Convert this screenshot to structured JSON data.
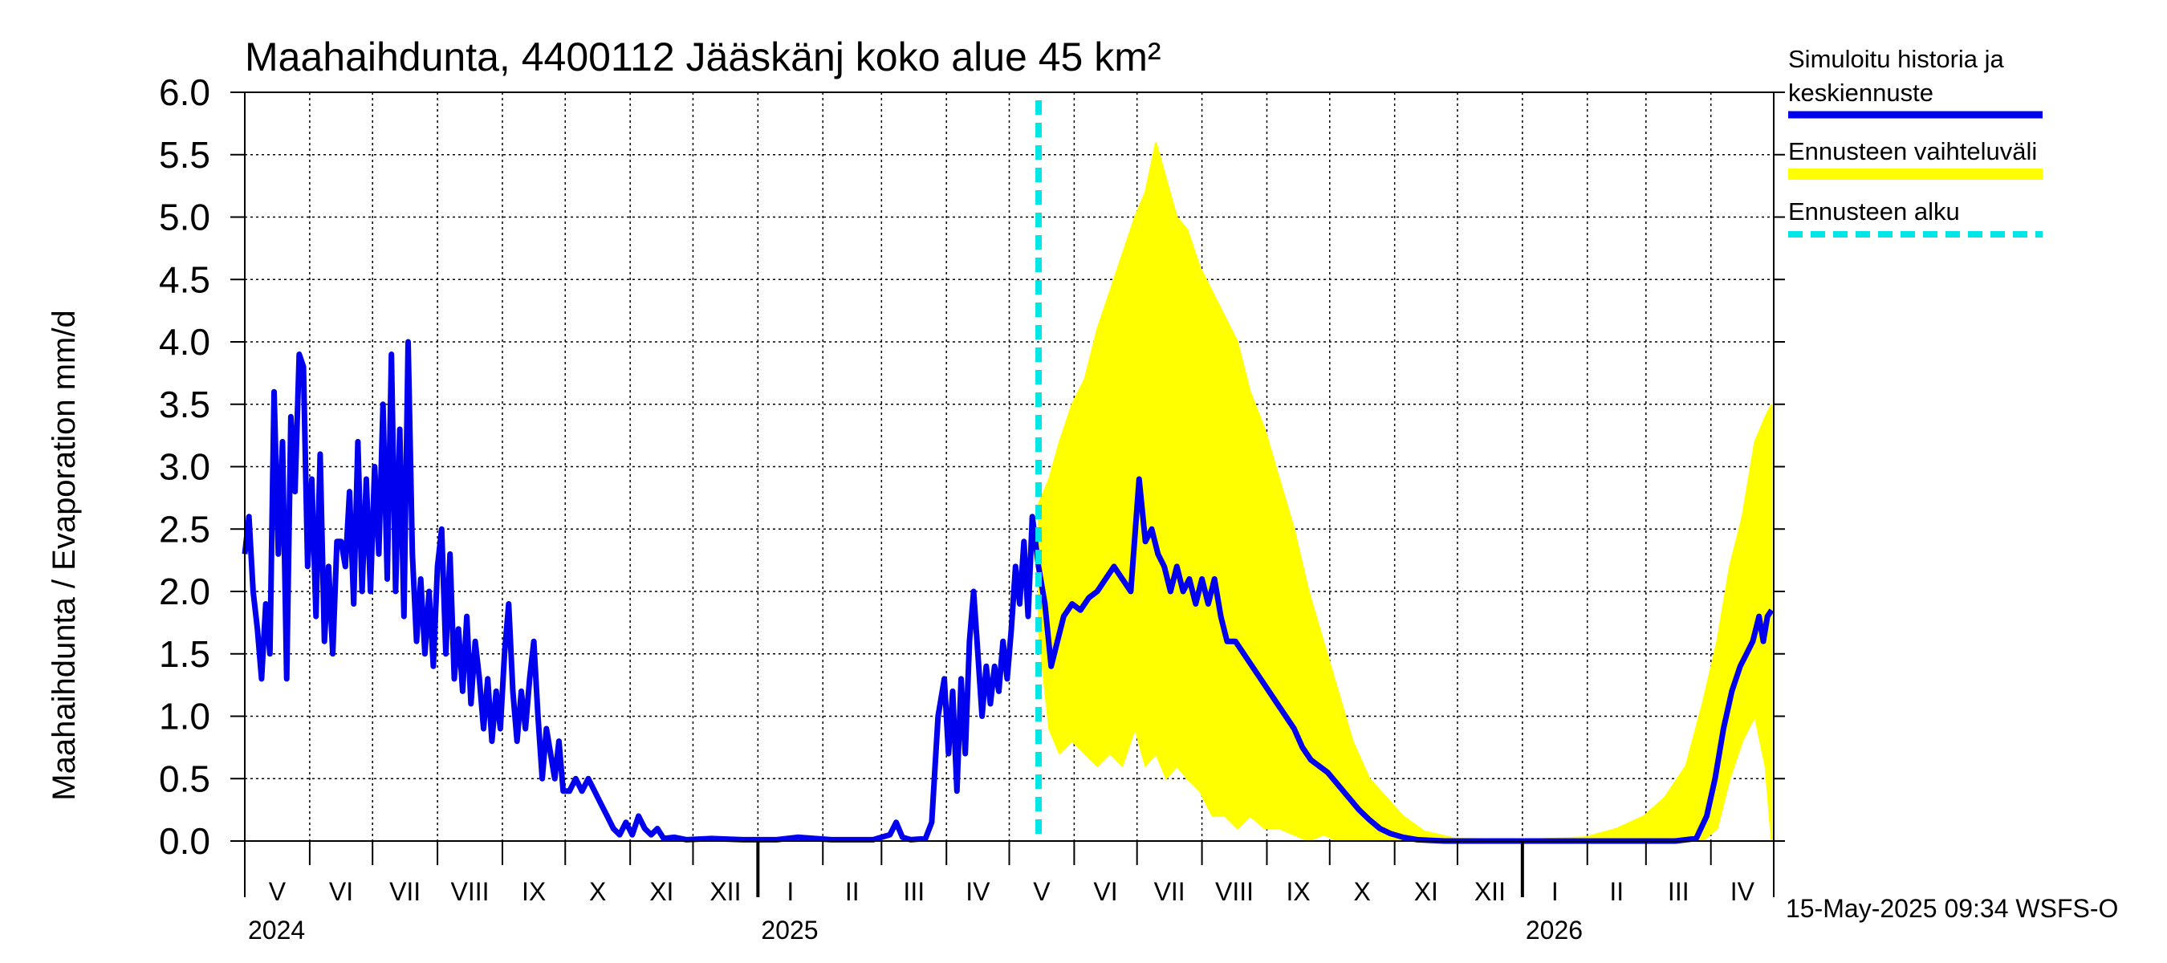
{
  "chart_data": {
    "type": "line",
    "title": "Maahaihdunta, 4400112 Jääskänj koko alue 45 km²",
    "ylabel": "Maahaihdunta / Evaporation   mm/d",
    "ylim": [
      0,
      6.0
    ],
    "yticks": [
      "0.0",
      "0.5",
      "1.0",
      "1.5",
      "2.0",
      "2.5",
      "3.0",
      "3.5",
      "4.0",
      "4.5",
      "5.0",
      "5.5",
      "6.0"
    ],
    "x_range": [
      "2024-05-01",
      "2026-04-30"
    ],
    "months": [
      "V",
      "VI",
      "VII",
      "VIII",
      "IX",
      "X",
      "XI",
      "XII",
      "I",
      "II",
      "III",
      "IV",
      "V",
      "VI",
      "VII",
      "VIII",
      "IX",
      "X",
      "XI",
      "XII",
      "I",
      "II",
      "III",
      "IV"
    ],
    "years": [
      "2024",
      "2025",
      "2026"
    ],
    "forecast_start": "2025-05-15",
    "colors": {
      "history": "#0000ee",
      "range": "#ffff00",
      "forecast_start": "#00e5e5"
    },
    "legend": {
      "history_line1": "Simuloitu historia ja",
      "history_line2": "keskiennuste",
      "range": "Ennusteen vaihteluväli",
      "start": "Ennusteen alku"
    },
    "series": [
      {
        "name": "Simuloitu historia ja keskiennuste",
        "color": "#0000ee",
        "points": [
          [
            "2024-05-01",
            2.3
          ],
          [
            "2024-05-03",
            2.6
          ],
          [
            "2024-05-05",
            2.0
          ],
          [
            "2024-05-07",
            1.7
          ],
          [
            "2024-05-09",
            1.3
          ],
          [
            "2024-05-11",
            1.9
          ],
          [
            "2024-05-13",
            1.5
          ],
          [
            "2024-05-15",
            3.6
          ],
          [
            "2024-05-17",
            2.3
          ],
          [
            "2024-05-19",
            3.2
          ],
          [
            "2024-05-21",
            1.3
          ],
          [
            "2024-05-23",
            3.4
          ],
          [
            "2024-05-25",
            2.8
          ],
          [
            "2024-05-27",
            3.9
          ],
          [
            "2024-05-29",
            3.8
          ],
          [
            "2024-05-31",
            2.2
          ],
          [
            "2024-06-02",
            2.9
          ],
          [
            "2024-06-04",
            1.8
          ],
          [
            "2024-06-06",
            3.1
          ],
          [
            "2024-06-08",
            1.6
          ],
          [
            "2024-06-10",
            2.2
          ],
          [
            "2024-06-12",
            1.5
          ],
          [
            "2024-06-14",
            2.4
          ],
          [
            "2024-06-16",
            2.4
          ],
          [
            "2024-06-18",
            2.2
          ],
          [
            "2024-06-20",
            2.8
          ],
          [
            "2024-06-22",
            1.9
          ],
          [
            "2024-06-24",
            3.2
          ],
          [
            "2024-06-26",
            2.0
          ],
          [
            "2024-06-28",
            2.9
          ],
          [
            "2024-06-30",
            2.0
          ],
          [
            "2024-07-02",
            3.0
          ],
          [
            "2024-07-04",
            2.3
          ],
          [
            "2024-07-06",
            3.5
          ],
          [
            "2024-07-08",
            2.1
          ],
          [
            "2024-07-10",
            3.9
          ],
          [
            "2024-07-12",
            2.0
          ],
          [
            "2024-07-14",
            3.3
          ],
          [
            "2024-07-16",
            1.8
          ],
          [
            "2024-07-18",
            4.0
          ],
          [
            "2024-07-20",
            2.3
          ],
          [
            "2024-07-22",
            1.6
          ],
          [
            "2024-07-24",
            2.1
          ],
          [
            "2024-07-26",
            1.5
          ],
          [
            "2024-07-28",
            2.0
          ],
          [
            "2024-07-30",
            1.4
          ],
          [
            "2024-08-01",
            2.2
          ],
          [
            "2024-08-03",
            2.5
          ],
          [
            "2024-08-05",
            1.5
          ],
          [
            "2024-08-07",
            2.3
          ],
          [
            "2024-08-09",
            1.3
          ],
          [
            "2024-08-11",
            1.7
          ],
          [
            "2024-08-13",
            1.2
          ],
          [
            "2024-08-15",
            1.8
          ],
          [
            "2024-08-17",
            1.1
          ],
          [
            "2024-08-19",
            1.6
          ],
          [
            "2024-08-21",
            1.3
          ],
          [
            "2024-08-23",
            0.9
          ],
          [
            "2024-08-25",
            1.3
          ],
          [
            "2024-08-27",
            0.8
          ],
          [
            "2024-08-29",
            1.2
          ],
          [
            "2024-08-31",
            0.9
          ],
          [
            "2024-09-02",
            1.5
          ],
          [
            "2024-09-04",
            1.9
          ],
          [
            "2024-09-06",
            1.2
          ],
          [
            "2024-09-08",
            0.8
          ],
          [
            "2024-09-10",
            1.2
          ],
          [
            "2024-09-12",
            0.9
          ],
          [
            "2024-09-14",
            1.3
          ],
          [
            "2024-09-16",
            1.6
          ],
          [
            "2024-09-18",
            1.0
          ],
          [
            "2024-09-20",
            0.5
          ],
          [
            "2024-09-22",
            0.9
          ],
          [
            "2024-09-24",
            0.7
          ],
          [
            "2024-09-26",
            0.5
          ],
          [
            "2024-09-28",
            0.8
          ],
          [
            "2024-09-30",
            0.4
          ],
          [
            "2024-10-03",
            0.4
          ],
          [
            "2024-10-06",
            0.5
          ],
          [
            "2024-10-09",
            0.4
          ],
          [
            "2024-10-12",
            0.5
          ],
          [
            "2024-10-15",
            0.4
          ],
          [
            "2024-10-18",
            0.3
          ],
          [
            "2024-10-21",
            0.2
          ],
          [
            "2024-10-24",
            0.1
          ],
          [
            "2024-10-27",
            0.05
          ],
          [
            "2024-10-30",
            0.15
          ],
          [
            "2024-11-02",
            0.05
          ],
          [
            "2024-11-05",
            0.2
          ],
          [
            "2024-11-08",
            0.1
          ],
          [
            "2024-11-11",
            0.05
          ],
          [
            "2024-11-14",
            0.1
          ],
          [
            "2024-11-17",
            0.02
          ],
          [
            "2024-11-22",
            0.03
          ],
          [
            "2024-11-28",
            0.01
          ],
          [
            "2024-12-10",
            0.02
          ],
          [
            "2024-12-25",
            0.01
          ],
          [
            "2025-01-10",
            0.01
          ],
          [
            "2025-01-20",
            0.03
          ],
          [
            "2025-02-05",
            0.01
          ],
          [
            "2025-02-25",
            0.01
          ],
          [
            "2025-03-05",
            0.05
          ],
          [
            "2025-03-08",
            0.15
          ],
          [
            "2025-03-11",
            0.03
          ],
          [
            "2025-03-15",
            0.01
          ],
          [
            "2025-03-22",
            0.02
          ],
          [
            "2025-03-25",
            0.15
          ],
          [
            "2025-03-28",
            1.0
          ],
          [
            "2025-03-31",
            1.3
          ],
          [
            "2025-04-02",
            0.7
          ],
          [
            "2025-04-04",
            1.2
          ],
          [
            "2025-04-06",
            0.4
          ],
          [
            "2025-04-08",
            1.3
          ],
          [
            "2025-04-10",
            0.7
          ],
          [
            "2025-04-12",
            1.6
          ],
          [
            "2025-04-14",
            2.0
          ],
          [
            "2025-04-16",
            1.5
          ],
          [
            "2025-04-18",
            1.0
          ],
          [
            "2025-04-20",
            1.4
          ],
          [
            "2025-04-22",
            1.1
          ],
          [
            "2025-04-24",
            1.4
          ],
          [
            "2025-04-26",
            1.2
          ],
          [
            "2025-04-28",
            1.6
          ],
          [
            "2025-04-30",
            1.3
          ],
          [
            "2025-05-02",
            1.7
          ],
          [
            "2025-05-04",
            2.2
          ],
          [
            "2025-05-06",
            1.9
          ],
          [
            "2025-05-08",
            2.4
          ],
          [
            "2025-05-10",
            1.8
          ],
          [
            "2025-05-12",
            2.6
          ],
          [
            "2025-05-15",
            2.2
          ],
          [
            "2025-05-18",
            1.9
          ],
          [
            "2025-05-21",
            1.4
          ],
          [
            "2025-05-24",
            1.6
          ],
          [
            "2025-05-27",
            1.8
          ],
          [
            "2025-05-31",
            1.9
          ],
          [
            "2025-06-04",
            1.85
          ],
          [
            "2025-06-08",
            1.95
          ],
          [
            "2025-06-12",
            2.0
          ],
          [
            "2025-06-16",
            2.1
          ],
          [
            "2025-06-20",
            2.2
          ],
          [
            "2025-06-24",
            2.1
          ],
          [
            "2025-06-28",
            2.0
          ],
          [
            "2025-07-02",
            2.9
          ],
          [
            "2025-07-05",
            2.4
          ],
          [
            "2025-07-08",
            2.5
          ],
          [
            "2025-07-11",
            2.3
          ],
          [
            "2025-07-14",
            2.2
          ],
          [
            "2025-07-17",
            2.0
          ],
          [
            "2025-07-20",
            2.2
          ],
          [
            "2025-07-23",
            2.0
          ],
          [
            "2025-07-26",
            2.1
          ],
          [
            "2025-07-29",
            1.9
          ],
          [
            "2025-08-01",
            2.1
          ],
          [
            "2025-08-04",
            1.9
          ],
          [
            "2025-08-07",
            2.1
          ],
          [
            "2025-08-10",
            1.8
          ],
          [
            "2025-08-13",
            1.6
          ],
          [
            "2025-08-17",
            1.6
          ],
          [
            "2025-08-21",
            1.5
          ],
          [
            "2025-08-25",
            1.4
          ],
          [
            "2025-08-29",
            1.3
          ],
          [
            "2025-09-02",
            1.2
          ],
          [
            "2025-09-06",
            1.1
          ],
          [
            "2025-09-10",
            1.0
          ],
          [
            "2025-09-14",
            0.9
          ],
          [
            "2025-09-18",
            0.75
          ],
          [
            "2025-09-22",
            0.65
          ],
          [
            "2025-09-26",
            0.6
          ],
          [
            "2025-09-30",
            0.55
          ],
          [
            "2025-10-05",
            0.45
          ],
          [
            "2025-10-10",
            0.35
          ],
          [
            "2025-10-15",
            0.25
          ],
          [
            "2025-10-20",
            0.17
          ],
          [
            "2025-10-25",
            0.1
          ],
          [
            "2025-10-30",
            0.06
          ],
          [
            "2025-11-05",
            0.03
          ],
          [
            "2025-11-12",
            0.01
          ],
          [
            "2025-11-25",
            0.0
          ],
          [
            "2025-12-20",
            0.0
          ],
          [
            "2026-01-20",
            0.0
          ],
          [
            "2026-02-20",
            0.0
          ],
          [
            "2026-03-15",
            0.0
          ],
          [
            "2026-03-25",
            0.02
          ],
          [
            "2026-03-30",
            0.2
          ],
          [
            "2026-04-03",
            0.5
          ],
          [
            "2026-04-07",
            0.9
          ],
          [
            "2026-04-11",
            1.2
          ],
          [
            "2026-04-15",
            1.4
          ],
          [
            "2026-04-18",
            1.5
          ],
          [
            "2026-04-21",
            1.6
          ],
          [
            "2026-04-24",
            1.8
          ],
          [
            "2026-04-26",
            1.6
          ],
          [
            "2026-04-28",
            1.8
          ],
          [
            "2026-04-30",
            1.85
          ]
        ]
      },
      {
        "name": "Ennusteen vaihteluväli",
        "color": "#ffff00",
        "points": [
          [
            "2025-05-15",
            1.7,
            2.7
          ],
          [
            "2025-05-20",
            0.9,
            2.9
          ],
          [
            "2025-05-25",
            0.7,
            3.2
          ],
          [
            "2025-05-31",
            0.8,
            3.5
          ],
          [
            "2025-06-06",
            0.7,
            3.7
          ],
          [
            "2025-06-12",
            0.6,
            4.1
          ],
          [
            "2025-06-18",
            0.7,
            4.4
          ],
          [
            "2025-06-24",
            0.6,
            4.7
          ],
          [
            "2025-06-30",
            0.9,
            5.0
          ],
          [
            "2025-07-05",
            0.6,
            5.2
          ],
          [
            "2025-07-10",
            0.7,
            5.6
          ],
          [
            "2025-07-15",
            0.5,
            5.3
          ],
          [
            "2025-07-20",
            0.6,
            5.0
          ],
          [
            "2025-07-25",
            0.5,
            4.9
          ],
          [
            "2025-07-31",
            0.4,
            4.6
          ],
          [
            "2025-08-06",
            0.2,
            4.4
          ],
          [
            "2025-08-12",
            0.2,
            4.2
          ],
          [
            "2025-08-18",
            0.1,
            4.0
          ],
          [
            "2025-08-24",
            0.2,
            3.6
          ],
          [
            "2025-08-31",
            0.1,
            3.3
          ],
          [
            "2025-09-07",
            0.1,
            2.9
          ],
          [
            "2025-09-14",
            0.05,
            2.5
          ],
          [
            "2025-09-21",
            0.0,
            2.0
          ],
          [
            "2025-09-28",
            0.05,
            1.6
          ],
          [
            "2025-10-05",
            0.0,
            1.2
          ],
          [
            "2025-10-12",
            0.0,
            0.8
          ],
          [
            "2025-10-20",
            0.0,
            0.5
          ],
          [
            "2025-10-28",
            0.0,
            0.35
          ],
          [
            "2025-11-05",
            0.0,
            0.2
          ],
          [
            "2025-11-15",
            0.0,
            0.08
          ],
          [
            "2025-11-30",
            0.0,
            0.02
          ],
          [
            "2025-12-31",
            0.0,
            0.01
          ],
          [
            "2026-01-31",
            0.0,
            0.03
          ],
          [
            "2026-02-15",
            0.0,
            0.1
          ],
          [
            "2026-02-28",
            0.0,
            0.2
          ],
          [
            "2026-03-10",
            0.0,
            0.35
          ],
          [
            "2026-03-20",
            0.0,
            0.6
          ],
          [
            "2026-03-28",
            0.0,
            1.1
          ],
          [
            "2026-04-04",
            0.1,
            1.6
          ],
          [
            "2026-04-10",
            0.5,
            2.2
          ],
          [
            "2026-04-16",
            0.8,
            2.6
          ],
          [
            "2026-04-22",
            1.0,
            3.2
          ],
          [
            "2026-04-27",
            0.6,
            3.4
          ],
          [
            "2026-04-30",
            0.0,
            3.5
          ]
        ]
      }
    ]
  },
  "footer": {
    "timestamp": "15-May-2025 09:34 WSFS-O"
  }
}
